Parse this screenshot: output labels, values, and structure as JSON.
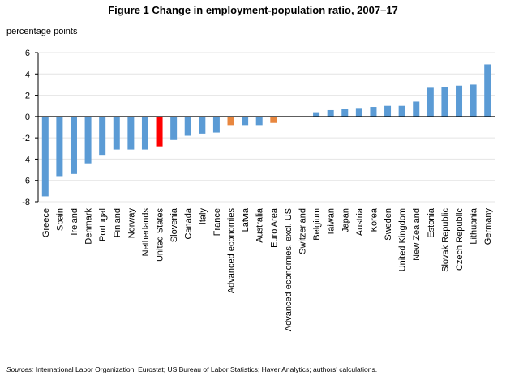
{
  "chart_data": {
    "type": "bar",
    "title": "Figure 1 Change in employment-population ratio, 2007–17",
    "y_label": "percentage points",
    "source_label": "Sources:",
    "source_text": " International Labor Organization;  Eurostat; US Bureau of Labor Statistics; Haver Analytics; authors' calculations.",
    "categories": [
      "Greece",
      "Spain",
      "Ireland",
      "Denmark",
      "Portugal",
      "Finland",
      "Norway",
      "Netherlands",
      "United States",
      "Slovenia",
      "Canada",
      "Italy",
      "France",
      "Advanced economies",
      "Latvia",
      "Australia",
      "Euro Area",
      "Advanced economies, excl. US",
      "Switzerland",
      "Belgium",
      "Taiwan",
      "Japan",
      "Austria",
      "Korea",
      "Sweden",
      "United Kingdom",
      "New Zealand",
      "Estonia",
      "Slovak Republic",
      "Czech Republic",
      "Lithuania",
      "Germany"
    ],
    "values": [
      -7.5,
      -5.6,
      -5.4,
      -4.4,
      -3.6,
      -3.1,
      -3.1,
      -3.1,
      -2.8,
      -2.2,
      -1.8,
      -1.6,
      -1.5,
      -0.8,
      -0.8,
      -0.8,
      -0.6,
      0,
      0,
      0.4,
      0.6,
      0.7,
      0.8,
      0.9,
      1.0,
      1.0,
      1.4,
      2.7,
      2.8,
      2.9,
      3.0,
      4.9
    ],
    "colors": [
      "#5b9bd5",
      "#5b9bd5",
      "#5b9bd5",
      "#5b9bd5",
      "#5b9bd5",
      "#5b9bd5",
      "#5b9bd5",
      "#5b9bd5",
      "#ff0000",
      "#5b9bd5",
      "#5b9bd5",
      "#5b9bd5",
      "#5b9bd5",
      "#e8873f",
      "#5b9bd5",
      "#5b9bd5",
      "#e8873f",
      "#5b9bd5",
      "#5b9bd5",
      "#5b9bd5",
      "#5b9bd5",
      "#5b9bd5",
      "#5b9bd5",
      "#5b9bd5",
      "#5b9bd5",
      "#5b9bd5",
      "#5b9bd5",
      "#5b9bd5",
      "#5b9bd5",
      "#5b9bd5",
      "#5b9bd5",
      "#5b9bd5"
    ],
    "ylim": [
      -8,
      6
    ],
    "yticks": [
      -8,
      -6,
      -4,
      -2,
      0,
      2,
      4,
      6
    ],
    "grid": true
  }
}
